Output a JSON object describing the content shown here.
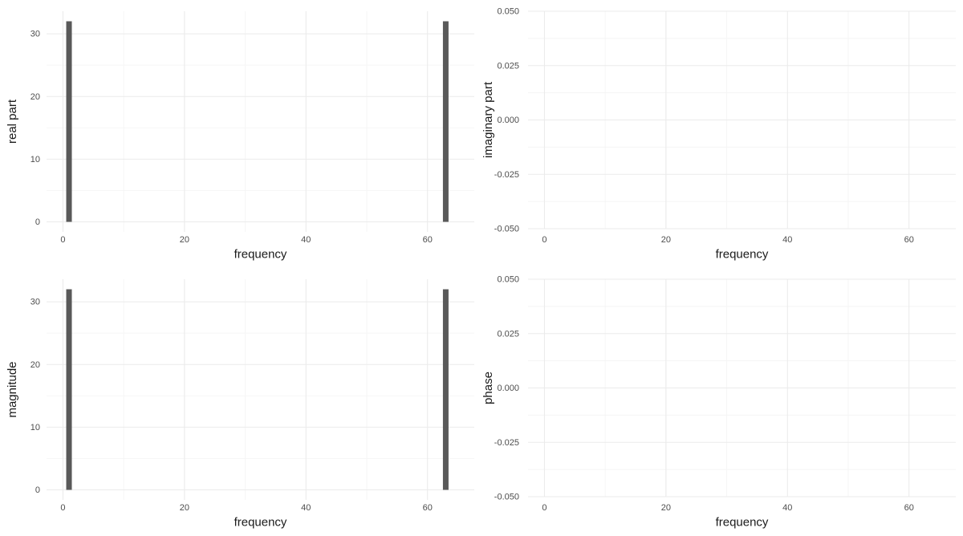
{
  "theme": {
    "background": "#ffffff",
    "grid_major_color": "#ebebeb",
    "grid_minor_color": "#f5f5f5",
    "axis_text_color": "#4d4d4d",
    "axis_title_color": "#1a1a1a",
    "bar_color": "#595959"
  },
  "chart_data": [
    {
      "id": "real-part",
      "type": "bar",
      "title": "",
      "xlabel": "frequency",
      "ylabel": "real part",
      "x": [
        1,
        63
      ],
      "values": [
        32,
        32
      ],
      "xlim": [
        -2.7,
        67.7
      ],
      "ylim": [
        -1.6,
        33.6
      ],
      "x_tick_values": [
        0,
        20,
        40,
        60
      ],
      "x_tick_labels": [
        "0",
        "20",
        "40",
        "60"
      ],
      "x_minor": [
        10,
        30,
        50
      ],
      "y_tick_values": [
        0,
        10,
        20,
        30
      ],
      "y_tick_labels": [
        "0",
        "10",
        "20",
        "30"
      ],
      "y_minor": [
        5,
        15,
        25
      ],
      "grid": true,
      "legend": "none"
    },
    {
      "id": "imaginary-part",
      "type": "bar",
      "title": "",
      "xlabel": "frequency",
      "ylabel": "imaginary part",
      "x": [],
      "values": [],
      "xlim": [
        -2.7,
        67.7
      ],
      "ylim": [
        -0.05,
        0.05
      ],
      "x_tick_values": [
        0,
        20,
        40,
        60
      ],
      "x_tick_labels": [
        "0",
        "20",
        "40",
        "60"
      ],
      "x_minor": [
        10,
        30,
        50
      ],
      "y_tick_values": [
        0.05,
        0.025,
        0,
        -0.025,
        -0.05
      ],
      "y_tick_labels": [
        "0.050",
        "0.025",
        "0.000",
        "-0.025",
        "-0.050"
      ],
      "y_minor": [
        0.0375,
        0.0125,
        -0.0125,
        -0.0375
      ],
      "grid": true,
      "legend": "none"
    },
    {
      "id": "magnitude",
      "type": "bar",
      "title": "",
      "xlabel": "frequency",
      "ylabel": "magnitude",
      "x": [
        1,
        63
      ],
      "values": [
        32,
        32
      ],
      "xlim": [
        -2.7,
        67.7
      ],
      "ylim": [
        -1.6,
        33.6
      ],
      "x_tick_values": [
        0,
        20,
        40,
        60
      ],
      "x_tick_labels": [
        "0",
        "20",
        "40",
        "60"
      ],
      "x_minor": [
        10,
        30,
        50
      ],
      "y_tick_values": [
        0,
        10,
        20,
        30
      ],
      "y_tick_labels": [
        "0",
        "10",
        "20",
        "30"
      ],
      "y_minor": [
        5,
        15,
        25
      ],
      "grid": true,
      "legend": "none"
    },
    {
      "id": "phase",
      "type": "bar",
      "title": "",
      "xlabel": "frequency",
      "ylabel": "phase",
      "x": [],
      "values": [],
      "xlim": [
        -2.7,
        67.7
      ],
      "ylim": [
        -0.05,
        0.05
      ],
      "x_tick_values": [
        0,
        20,
        40,
        60
      ],
      "x_tick_labels": [
        "0",
        "20",
        "40",
        "60"
      ],
      "x_minor": [
        10,
        30,
        50
      ],
      "y_tick_values": [
        0.05,
        0.025,
        0,
        -0.025,
        -0.05
      ],
      "y_tick_labels": [
        "0.050",
        "0.025",
        "0.000",
        "-0.025",
        "-0.050"
      ],
      "y_minor": [
        0.0375,
        0.0125,
        -0.0125,
        -0.0375
      ],
      "grid": true,
      "legend": "none"
    }
  ]
}
